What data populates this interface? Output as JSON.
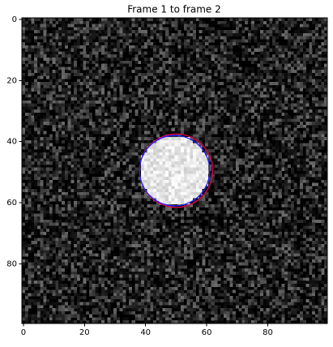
{
  "chart_data": {
    "type": "image",
    "title": "Frame 1 to frame 2",
    "xlim": [
      -0.5,
      99.5
    ],
    "ylim": [
      99.5,
      -0.5
    ],
    "xticks": [
      0,
      20,
      40,
      60,
      80
    ],
    "yticks": [
      0,
      20,
      40,
      60,
      80
    ],
    "disk": {
      "center": [
        49.5,
        49.5
      ],
      "radius": 11.5
    },
    "circles": [
      {
        "color": "#e0004a",
        "center": [
          50,
          49.5
        ],
        "radius": 12
      },
      {
        "color": "#2020ff",
        "center": [
          49.5,
          49.5
        ],
        "radius": 11.5
      }
    ]
  }
}
